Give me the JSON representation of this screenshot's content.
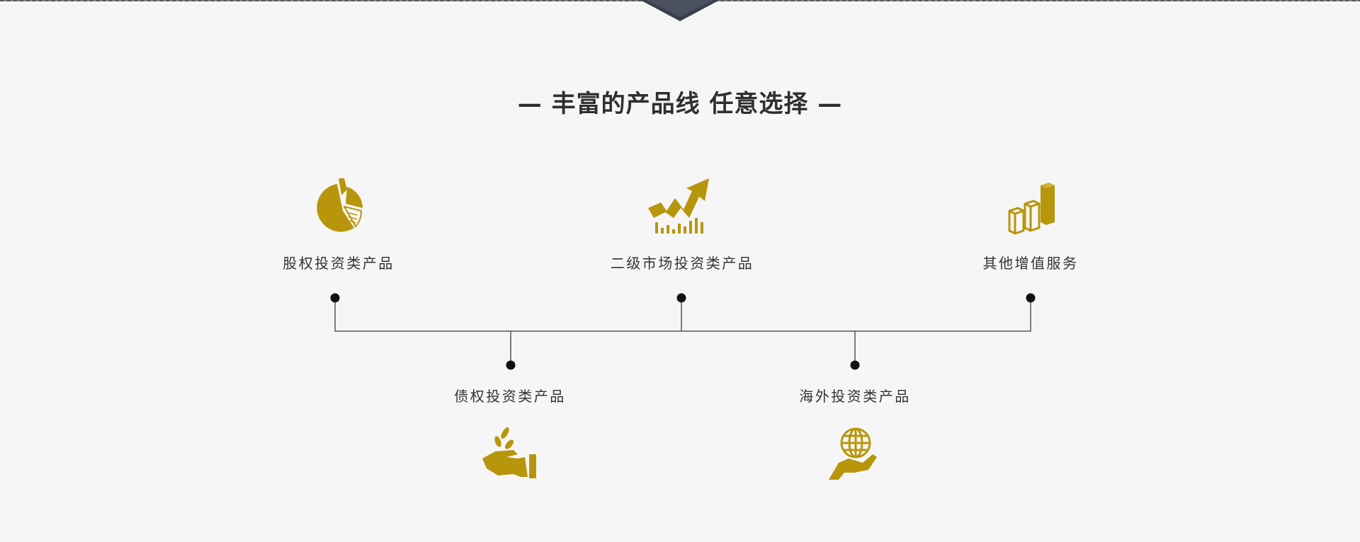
{
  "section": {
    "title": "— 丰富的产品线 任意选择 —",
    "accent_color": "#b8960c",
    "line_color": "#555555",
    "node_color": "#111111"
  },
  "products": {
    "top": [
      {
        "label": "股权投资类产品",
        "icon": "pie-chart-icon"
      },
      {
        "label": "二级市场投资类产品",
        "icon": "trend-arrow-icon"
      },
      {
        "label": "其他增值服务",
        "icon": "bar-blocks-icon"
      }
    ],
    "bottom": [
      {
        "label": "债权投资类产品",
        "icon": "hand-coins-icon"
      },
      {
        "label": "海外投资类产品",
        "icon": "hand-globe-icon"
      }
    ]
  }
}
